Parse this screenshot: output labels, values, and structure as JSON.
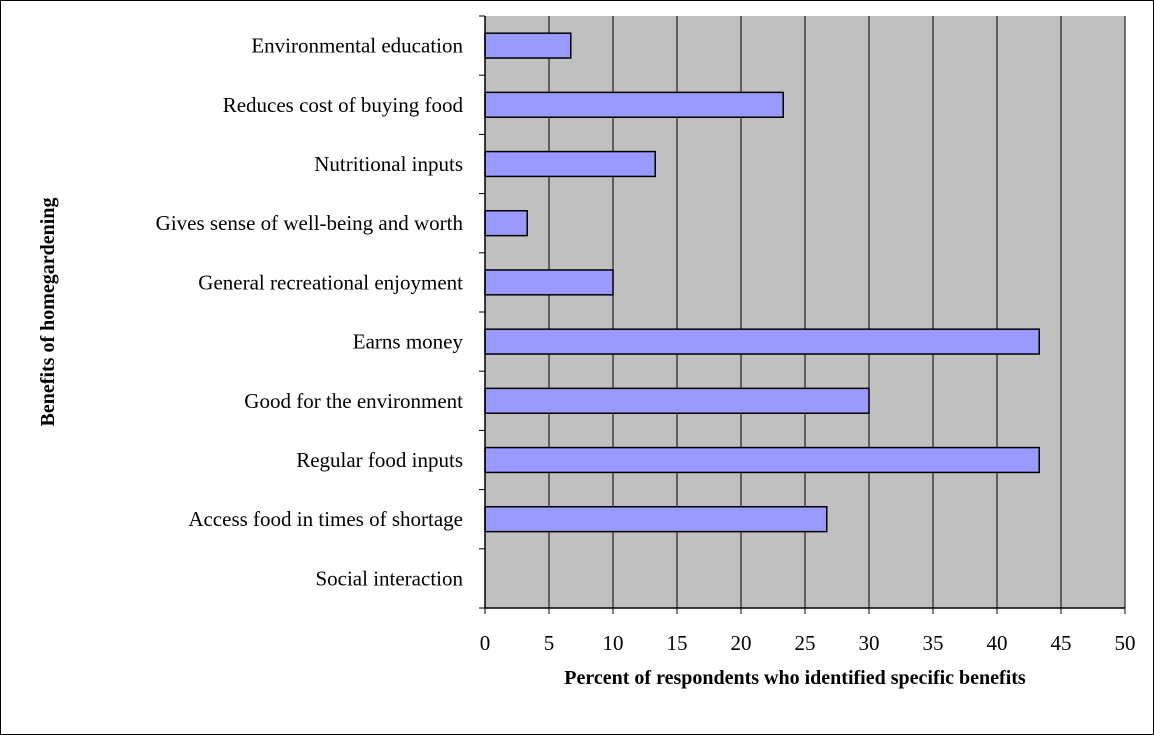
{
  "chart_data": {
    "type": "bar",
    "orientation": "horizontal",
    "categories": [
      "Environmental education",
      "Reduces cost of buying food",
      "Nutritional inputs",
      "Gives sense of well-being and worth",
      "General recreational enjoyment",
      "Earns money",
      "Good for the environment",
      "Regular food inputs",
      "Access food in times of shortage",
      "Social interaction"
    ],
    "values": [
      6.7,
      23.3,
      13.3,
      3.3,
      10.0,
      43.3,
      30.0,
      43.3,
      26.7,
      0
    ],
    "xlabel": "Percent of respondents who identified specific benefits",
    "ylabel": "Benefits of homegardening",
    "xlim": [
      0,
      50
    ],
    "xticks": [
      "0",
      "5",
      "10",
      "15",
      "20",
      "25",
      "30",
      "35",
      "40",
      "45",
      "50"
    ],
    "grid": "vertical",
    "legend": "none",
    "colors": {
      "plot_background": "#c0c0c0",
      "bar_fill": "#9999ff",
      "bar_stroke": "#000000",
      "gridline": "#000000"
    }
  }
}
